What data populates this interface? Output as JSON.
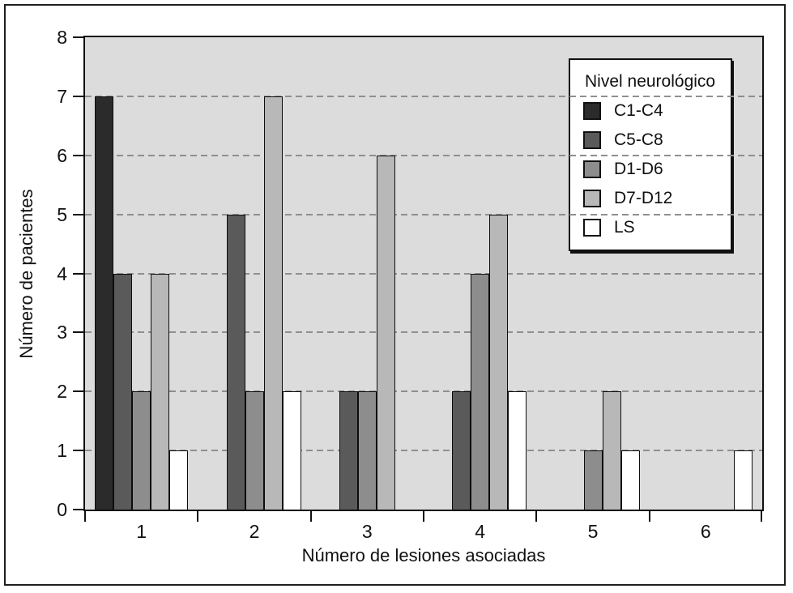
{
  "figure": {
    "y_axis_title": "Número de pacientes",
    "x_axis_title": "Número de lesiones asociadas",
    "legend_title": "Nivel neurológico"
  },
  "chart_data": {
    "type": "bar",
    "title": "",
    "xlabel": "Número de lesiones asociadas",
    "ylabel": "Número de pacientes",
    "categories": [
      "1",
      "2",
      "3",
      "4",
      "5",
      "6"
    ],
    "series": [
      {
        "name": "C1-C4",
        "color": "#2b2b2b",
        "values": [
          7,
          0,
          0,
          0,
          0,
          0
        ]
      },
      {
        "name": "C5-C8",
        "color": "#5a5a5a",
        "values": [
          4,
          5,
          2,
          2,
          0,
          0
        ]
      },
      {
        "name": "D1-D6",
        "color": "#8d8d8d",
        "values": [
          2,
          2,
          2,
          4,
          1,
          0
        ]
      },
      {
        "name": "D7-D12",
        "color": "#b8b8b8",
        "values": [
          4,
          7,
          6,
          5,
          2,
          0
        ]
      },
      {
        "name": "LS",
        "color": "#ffffff",
        "values": [
          1,
          2,
          0,
          2,
          1,
          1
        ]
      }
    ],
    "ylim": [
      0,
      8
    ],
    "yticks": [
      0,
      1,
      2,
      3,
      4,
      5,
      6,
      7,
      8
    ],
    "gridline_values": [
      1,
      2,
      3,
      4,
      5,
      6,
      7
    ],
    "grid_style": "horizontal dashed gray lines",
    "legend_title": "Nivel neurológico",
    "legend_position": "top-right inside plot",
    "plot_background": "#dcdcdc",
    "bar_border_color": "#0d0d0d"
  }
}
